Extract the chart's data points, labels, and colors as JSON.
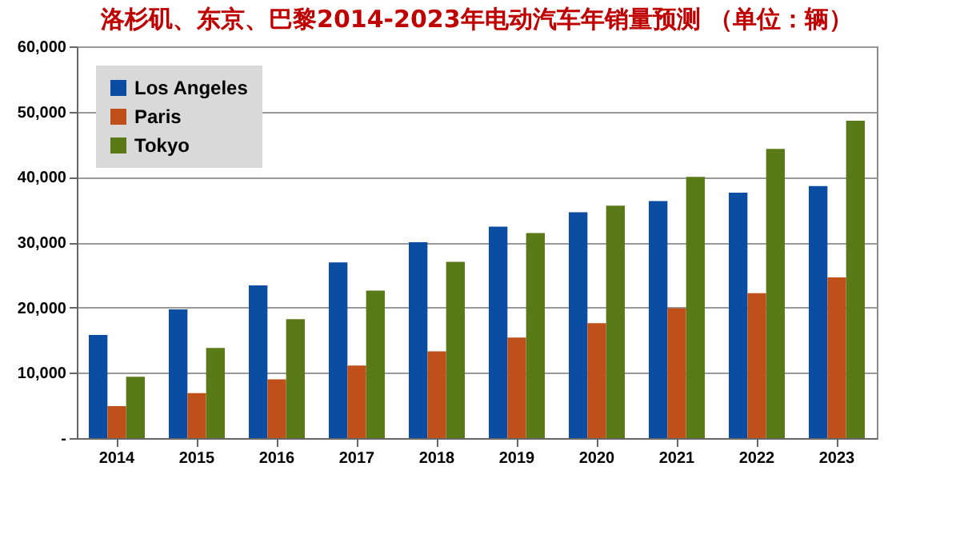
{
  "chart_data": {
    "type": "bar",
    "title": "洛杉矶、东京、巴黎2014-2023年电动汽车年销量预测 （单位：辆）",
    "categories": [
      "2014",
      "2015",
      "2016",
      "2017",
      "2018",
      "2019",
      "2020",
      "2021",
      "2022",
      "2023"
    ],
    "series": [
      {
        "name": "Los Angeles",
        "color": "#0a4da3",
        "values": [
          15800,
          19700,
          23400,
          26900,
          30000,
          32400,
          34600,
          36300,
          37600,
          38600
        ]
      },
      {
        "name": "Paris",
        "color": "#c0501a",
        "values": [
          4900,
          6900,
          9000,
          11100,
          13300,
          15400,
          17600,
          19900,
          22200,
          24600
        ]
      },
      {
        "name": "Tokyo",
        "color": "#5a7a18",
        "values": [
          9400,
          13800,
          18200,
          22600,
          27000,
          31400,
          35600,
          40000,
          44300,
          48600
        ]
      }
    ],
    "ylim": [
      0,
      60000
    ],
    "yticks": [
      {
        "value": 0,
        "label": "-"
      },
      {
        "value": 10000,
        "label": "10,000"
      },
      {
        "value": 20000,
        "label": "20,000"
      },
      {
        "value": 30000,
        "label": "30,000"
      },
      {
        "value": 40000,
        "label": "40,000"
      },
      {
        "value": 50000,
        "label": "50,000"
      },
      {
        "value": 60000,
        "label": "60,000"
      }
    ],
    "grid": "y",
    "legend": "top left"
  }
}
